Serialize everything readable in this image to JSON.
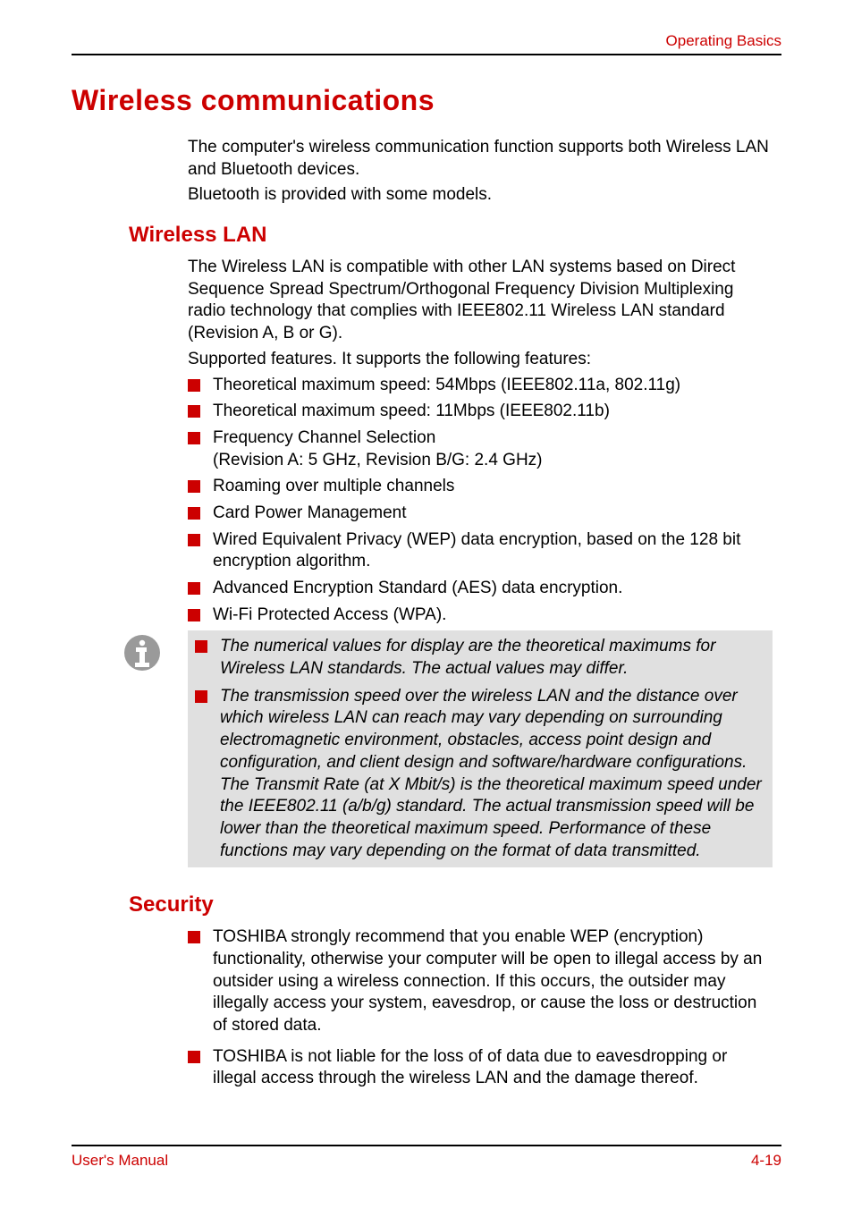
{
  "header": {
    "section_label": "Operating Basics"
  },
  "title": "Wireless communications",
  "intro_p1": "The computer's wireless communication function supports both Wireless LAN and Bluetooth devices.",
  "intro_p2": "Bluetooth is provided with some models.",
  "wlan": {
    "heading": "Wireless LAN",
    "p1": "The Wireless LAN is compatible with other LAN systems based on Direct Sequence Spread Spectrum/Orthogonal Frequency Division Multiplexing radio technology that complies with IEEE802.11 Wireless LAN standard (Revision A, B or G).",
    "p2": "Supported features. It supports the following features:",
    "bullets": [
      "Theoretical maximum speed: 54Mbps (IEEE802.11a, 802.11g)",
      "Theoretical maximum speed: 11Mbps (IEEE802.11b)",
      "Frequency Channel Selection\n(Revision A: 5 GHz, Revision B/G: 2.4 GHz)",
      "Roaming over multiple channels",
      "Card Power Management",
      "Wired Equivalent Privacy (WEP) data encryption, based on the 128 bit encryption algorithm.",
      "Advanced Encryption Standard (AES) data encryption.",
      "Wi-Fi Protected Access (WPA)."
    ]
  },
  "notes": [
    "The numerical values for display are the theoretical maximums for Wireless LAN standards. The actual values may differ.",
    "The transmission speed over the wireless LAN and the distance over which wireless LAN can reach may vary depending on surrounding electromagnetic environment, obstacles, access point design and configuration, and client design and software/hardware configurations. The Transmit Rate (at X Mbit/s) is the theoretical maximum speed under the IEEE802.11 (a/b/g) standard. The actual transmission speed will be lower than the theoretical maximum speed. Performance of these functions may vary depending on the format of data transmitted."
  ],
  "security": {
    "heading": "Security",
    "bullets": [
      "TOSHIBA strongly recommend that you enable WEP (encryption) functionality, otherwise your computer will be open to illegal access by an outsider using a wireless connection. If this occurs, the outsider may illegally access your system, eavesdrop, or cause the loss or destruction of stored data.",
      "TOSHIBA is not liable for the loss of of data due to eavesdropping or illegal access through the wireless LAN and the damage thereof."
    ]
  },
  "footer": {
    "left": "User's Manual",
    "right": "4-19"
  },
  "colors": {
    "accent": "#cc0000",
    "note_bg": "#e0e0e0",
    "text": "#000000",
    "icon_gray": "#9a9a9a",
    "icon_white": "#ffffff"
  }
}
